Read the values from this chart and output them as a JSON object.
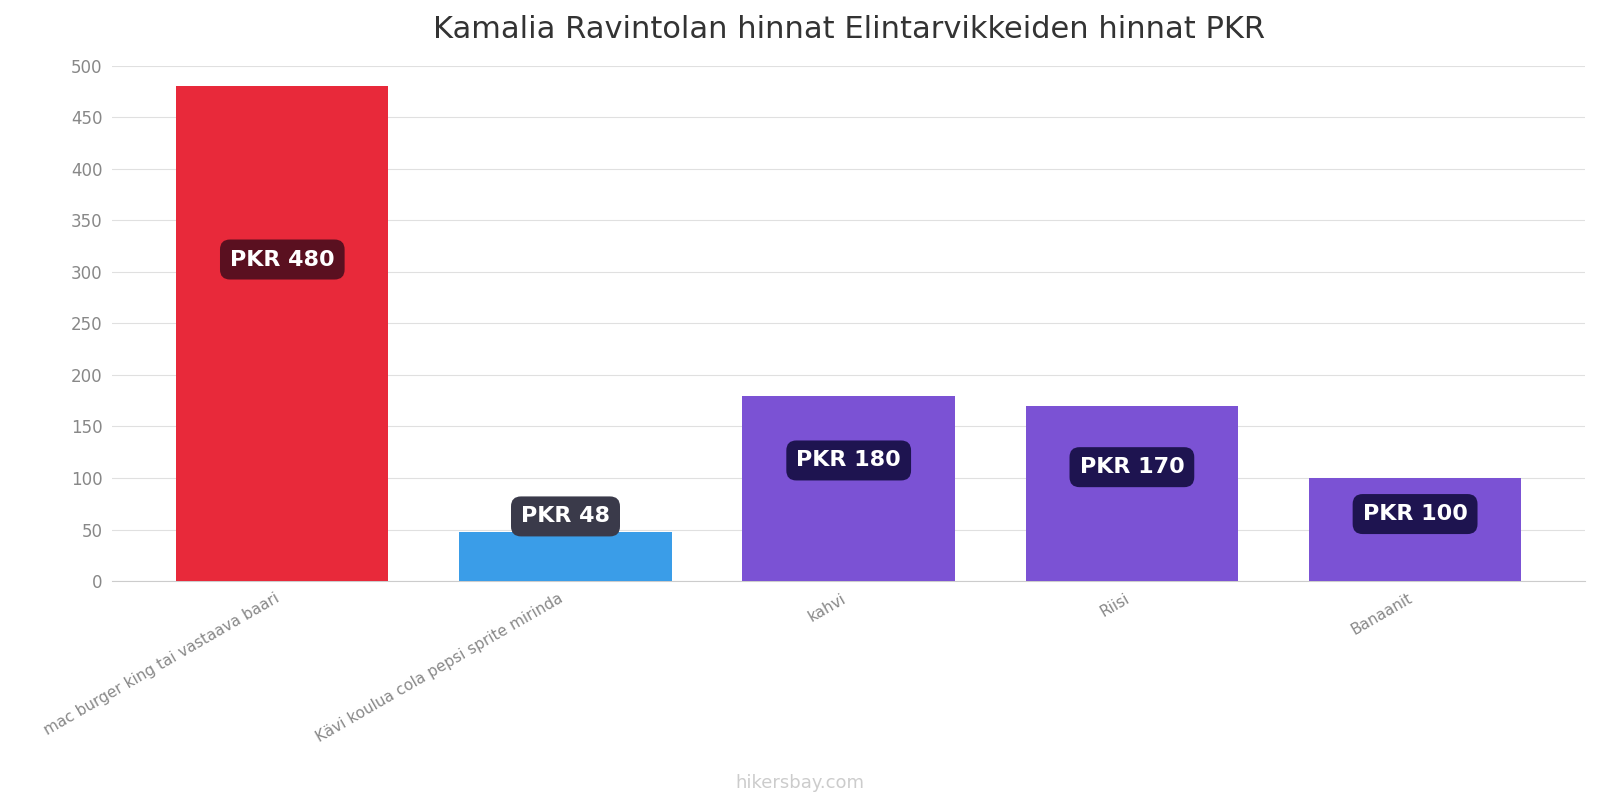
{
  "title": "Kamalia Ravintolan hinnat Elintarvikkeiden hinnat PKR",
  "categories": [
    "mac burger king tai vastaava baari",
    "Kävi koulua cola pepsi sprite mirinda",
    "kahvi",
    "Riisi",
    "Banaanit"
  ],
  "values": [
    480,
    48,
    180,
    170,
    100
  ],
  "bar_colors": [
    "#e8293a",
    "#3a9de8",
    "#7b52d4",
    "#7b52d4",
    "#7b52d4"
  ],
  "label_texts": [
    "PKR 480",
    "PKR 48",
    "PKR 180",
    "PKR 170",
    "PKR 100"
  ],
  "label_bg_colors": [
    "#5a1020",
    "#3a3a4a",
    "#1e1450",
    "#1e1450",
    "#1e1450"
  ],
  "ylim": [
    0,
    500
  ],
  "yticks": [
    0,
    50,
    100,
    150,
    200,
    250,
    300,
    350,
    400,
    450,
    500
  ],
  "background_color": "#ffffff",
  "title_fontsize": 22,
  "watermark": "hikersbay.com"
}
